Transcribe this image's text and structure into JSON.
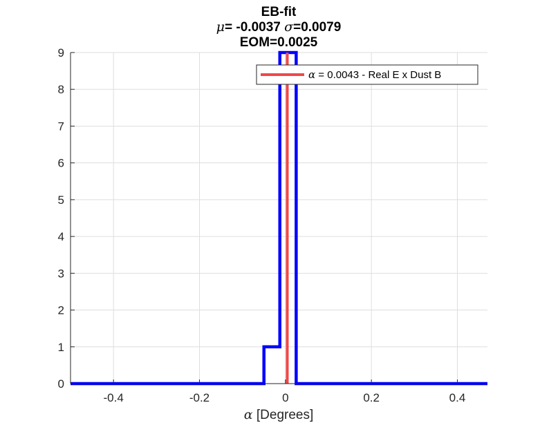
{
  "chart_data": {
    "type": "histogram",
    "title": {
      "line1": "EB-fit",
      "line2_mu_symbol": "μ",
      "line2_mu_value": "= -0.0037",
      "line2_sigma_symbol": "σ",
      "line2_sigma_value": "=0.0079",
      "line3": "EOM=0.0025"
    },
    "xlabel_symbol": "α",
    "xlabel_text": " [Degrees]",
    "ylabel": "",
    "xlim": [
      -0.5,
      0.47
    ],
    "ylim": [
      0,
      9
    ],
    "xticks": [
      -0.4,
      -0.2,
      0,
      0.2,
      0.4
    ],
    "xtick_labels": [
      "-0.4",
      "-0.2",
      "0",
      "0.2",
      "0.4"
    ],
    "yticks": [
      0,
      1,
      2,
      3,
      4,
      5,
      6,
      7,
      8,
      9
    ],
    "ytick_labels": [
      "0",
      "1",
      "2",
      "3",
      "4",
      "5",
      "6",
      "7",
      "8",
      "9"
    ],
    "grid": true,
    "histogram": {
      "color": "#0000ff",
      "bin_edges": [
        -0.5,
        -0.05,
        -0.013,
        0.025,
        0.47
      ],
      "counts": [
        0,
        1,
        9,
        0
      ]
    },
    "vline": {
      "x": 0.0043,
      "color": "#f04848",
      "legend_symbol": "α",
      "legend_text": " = 0.0043 - Real E x Dust B"
    },
    "legend_placement": "top-right"
  }
}
